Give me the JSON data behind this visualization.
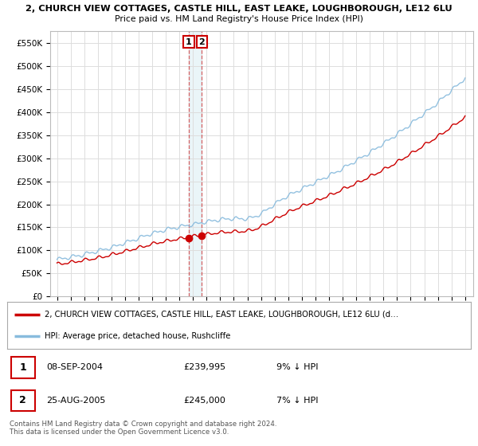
{
  "title_line1": "2, CHURCH VIEW COTTAGES, CASTLE HILL, EAST LEAKE, LOUGHBOROUGH, LE12 6LU",
  "title_line2": "Price paid vs. HM Land Registry's House Price Index (HPI)",
  "ylim": [
    0,
    575000
  ],
  "yticks": [
    0,
    50000,
    100000,
    150000,
    200000,
    250000,
    300000,
    350000,
    400000,
    450000,
    500000,
    550000
  ],
  "ytick_labels": [
    "£0",
    "£50K",
    "£100K",
    "£150K",
    "£200K",
    "£250K",
    "£300K",
    "£350K",
    "£400K",
    "£450K",
    "£500K",
    "£550K"
  ],
  "sale1_date": 2004.69,
  "sale1_price": 239995,
  "sale2_date": 2005.65,
  "sale2_price": 245000,
  "red_color": "#cc0000",
  "blue_color": "#88bbdd",
  "legend_label_red": "2, CHURCH VIEW COTTAGES, CASTLE HILL, EAST LEAKE, LOUGHBOROUGH, LE12 6LU (d…",
  "legend_label_blue": "HPI: Average price, detached house, Rushcliffe",
  "table_row1": [
    "1",
    "08-SEP-2004",
    "£239,995",
    "9% ↓ HPI"
  ],
  "table_row2": [
    "2",
    "25-AUG-2005",
    "£245,000",
    "7% ↓ HPI"
  ],
  "footer": "Contains HM Land Registry data © Crown copyright and database right 2024.\nThis data is licensed under the Open Government Licence v3.0.",
  "bg_color": "#ffffff",
  "grid_color": "#dddddd"
}
